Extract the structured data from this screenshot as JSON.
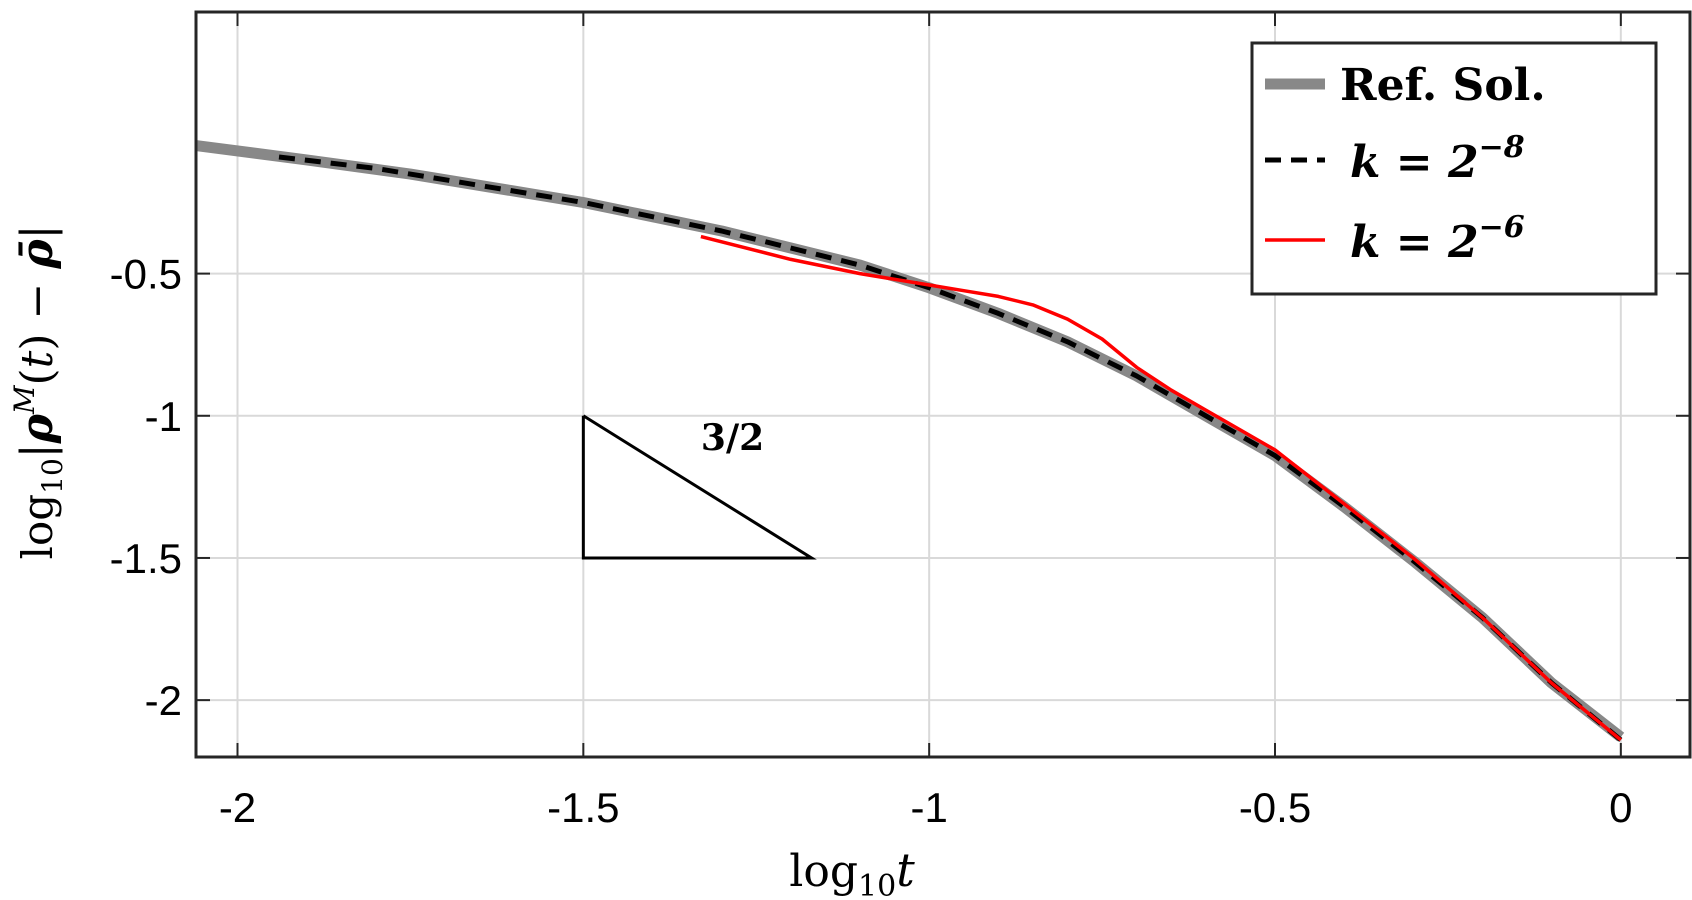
{
  "chart_data": {
    "type": "line",
    "xlabel": "log₁₀t",
    "ylabel": "log₁₀|ρᴹ(t) − ρ̄|",
    "xlim": [
      -2.06,
      0.1
    ],
    "ylim": [
      -2.2,
      0.42
    ],
    "grid": true,
    "legend_position": "top-right",
    "x_ticks": [
      -2,
      -1.5,
      -1,
      -0.5,
      0
    ],
    "x_tick_labels": [
      "-2",
      "-1.5",
      "-1",
      "-0.5",
      "0"
    ],
    "y_ticks": [
      -0.5,
      -1,
      -1.5,
      -2
    ],
    "y_tick_labels": [
      "-0.5",
      "-1",
      "-1.5",
      "-2"
    ],
    "series": [
      {
        "name": "Ref. Sol.",
        "color": "#888888",
        "style": "solid-thick",
        "x": [
          -2.06,
          -1.9,
          -1.75,
          -1.6,
          -1.5,
          -1.4,
          -1.3,
          -1.2,
          -1.1,
          -1.0,
          -0.9,
          -0.8,
          -0.7,
          -0.6,
          -0.5,
          -0.4,
          -0.3,
          -0.2,
          -0.1,
          0.0
        ],
        "y": [
          -0.05,
          -0.1,
          -0.15,
          -0.21,
          -0.25,
          -0.3,
          -0.35,
          -0.41,
          -0.47,
          -0.55,
          -0.64,
          -0.74,
          -0.86,
          -1.0,
          -1.14,
          -1.32,
          -1.51,
          -1.71,
          -1.94,
          -2.13
        ]
      },
      {
        "name": "k = 2⁻⁸",
        "label_base": "k = 2",
        "label_exp": "−8",
        "color": "#000000",
        "style": "dashed",
        "x": [
          -1.94,
          -1.8,
          -1.6,
          -1.5,
          -1.4,
          -1.3,
          -1.2,
          -1.1,
          -1.0,
          -0.9,
          -0.8,
          -0.7,
          -0.6,
          -0.5,
          -0.4,
          -0.3,
          -0.2,
          -0.1,
          0.0
        ],
        "y": [
          -0.09,
          -0.13,
          -0.21,
          -0.25,
          -0.3,
          -0.35,
          -0.41,
          -0.47,
          -0.55,
          -0.64,
          -0.74,
          -0.86,
          -1.0,
          -1.14,
          -1.32,
          -1.51,
          -1.71,
          -1.94,
          -2.14
        ]
      },
      {
        "name": "k = 2⁻⁶",
        "label_base": "k = 2",
        "label_exp": "−6",
        "color": "#ff0000",
        "style": "solid",
        "x": [
          -1.33,
          -1.2,
          -1.1,
          -1.0,
          -0.95,
          -0.9,
          -0.85,
          -0.8,
          -0.75,
          -0.7,
          -0.65,
          -0.6,
          -0.55,
          -0.5,
          -0.4,
          -0.3,
          -0.2,
          -0.1,
          0.0
        ],
        "y": [
          -0.37,
          -0.45,
          -0.5,
          -0.54,
          -0.56,
          -0.58,
          -0.61,
          -0.66,
          -0.73,
          -0.83,
          -0.91,
          -0.98,
          -1.05,
          -1.12,
          -1.31,
          -1.5,
          -1.71,
          -1.94,
          -2.14
        ]
      }
    ],
    "annotation": {
      "text": "3/2",
      "triangle": {
        "x": [
          -1.5,
          -1.5,
          -1.17
        ],
        "y": [
          -1.0,
          -1.5,
          -1.5
        ]
      }
    }
  }
}
